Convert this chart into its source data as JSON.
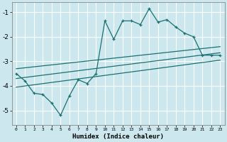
{
  "title": "",
  "xlabel": "Humidex (Indice chaleur)",
  "bg_color": "#cce8ee",
  "line_color": "#1a7070",
  "grid_color": "#ffffff",
  "xlim": [
    -0.5,
    23.5
  ],
  "ylim": [
    -5.6,
    -0.6
  ],
  "yticks": [
    -5,
    -4,
    -3,
    -2,
    -1
  ],
  "xticks": [
    0,
    1,
    2,
    3,
    4,
    5,
    6,
    7,
    8,
    9,
    10,
    11,
    12,
    13,
    14,
    15,
    16,
    17,
    18,
    19,
    20,
    21,
    22,
    23
  ],
  "x_data": [
    0,
    1,
    2,
    3,
    4,
    5,
    6,
    7,
    8,
    9,
    10,
    11,
    12,
    13,
    14,
    15,
    16,
    17,
    18,
    19,
    20,
    21,
    22,
    23
  ],
  "y_main": [
    -3.5,
    -3.8,
    -4.3,
    -4.35,
    -4.7,
    -5.2,
    -4.4,
    -3.75,
    -3.9,
    -3.5,
    -1.35,
    -2.1,
    -1.35,
    -1.35,
    -1.5,
    -0.85,
    -1.4,
    -1.3,
    -1.6,
    -1.85,
    -2.0,
    -2.75,
    -2.75,
    -2.75
  ],
  "reg_line1_x": [
    0,
    23
  ],
  "reg_line1_y": [
    -3.3,
    -2.4
  ],
  "reg_line2_x": [
    0,
    23
  ],
  "reg_line2_y": [
    -3.7,
    -2.65
  ],
  "reg_line3_x": [
    0,
    23
  ],
  "reg_line3_y": [
    -4.05,
    -2.95
  ]
}
